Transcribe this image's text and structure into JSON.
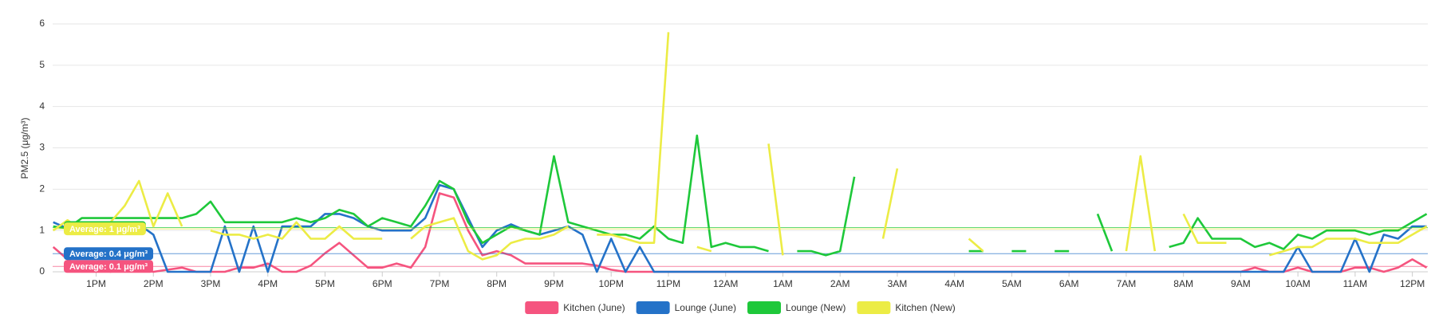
{
  "chart_data": {
    "type": "line",
    "ylabel": "PM2.5 (μg/m³)",
    "x": [
      12.25,
      12.5,
      12.75,
      13,
      13.25,
      13.5,
      13.75,
      14,
      14.25,
      14.5,
      14.75,
      15,
      15.25,
      15.5,
      15.75,
      16,
      16.25,
      16.5,
      16.75,
      17,
      17.25,
      17.5,
      17.75,
      18,
      18.25,
      18.5,
      18.75,
      19,
      19.25,
      19.5,
      19.75,
      20,
      20.25,
      20.5,
      20.75,
      21,
      21.25,
      21.5,
      21.75,
      22,
      22.25,
      22.5,
      22.75,
      23,
      23.25,
      23.5,
      23.75,
      24,
      24.25,
      24.5,
      24.75,
      25,
      25.25,
      25.5,
      25.75,
      26,
      26.25,
      26.5,
      26.75,
      27,
      27.25,
      27.5,
      27.75,
      28,
      28.25,
      28.5,
      28.75,
      29,
      29.25,
      29.5,
      29.75,
      30,
      30.25,
      30.5,
      30.75,
      31,
      31.25,
      31.5,
      31.75,
      32,
      32.25,
      32.5,
      32.75,
      33,
      33.25,
      33.5,
      33.75,
      34,
      34.25,
      34.5,
      34.75,
      35,
      35.25,
      35.5,
      35.75,
      36,
      36.25
    ],
    "xlim": [
      12.24,
      36.27
    ],
    "xticks": [
      {
        "value": 13,
        "label": "1PM"
      },
      {
        "value": 14,
        "label": "2PM"
      },
      {
        "value": 15,
        "label": "3PM"
      },
      {
        "value": 16,
        "label": "4PM"
      },
      {
        "value": 17,
        "label": "5PM"
      },
      {
        "value": 18,
        "label": "6PM"
      },
      {
        "value": 19,
        "label": "7PM"
      },
      {
        "value": 20,
        "label": "8PM"
      },
      {
        "value": 21,
        "label": "9PM"
      },
      {
        "value": 22,
        "label": "10PM"
      },
      {
        "value": 23,
        "label": "11PM"
      },
      {
        "value": 24,
        "label": "12AM"
      },
      {
        "value": 25,
        "label": "1AM"
      },
      {
        "value": 26,
        "label": "2AM"
      },
      {
        "value": 27,
        "label": "3AM"
      },
      {
        "value": 28,
        "label": "4AM"
      },
      {
        "value": 29,
        "label": "5AM"
      },
      {
        "value": 30,
        "label": "6AM"
      },
      {
        "value": 31,
        "label": "7AM"
      },
      {
        "value": 32,
        "label": "8AM"
      },
      {
        "value": 33,
        "label": "9AM"
      },
      {
        "value": 34,
        "label": "10AM"
      },
      {
        "value": 35,
        "label": "11AM"
      },
      {
        "value": 36,
        "label": "12PM"
      }
    ],
    "ylim": [
      0,
      6
    ],
    "yticks": [
      0,
      1,
      2,
      3,
      4,
      5,
      6
    ],
    "grid": true,
    "legend": "bottom",
    "series": [
      {
        "name": "Kitchen (June)",
        "color": "#f5547f",
        "average": 0.13,
        "average_label": "Average: 0.1 μg/m³",
        "values": [
          0.6,
          0.3,
          0.1,
          0.1,
          0,
          0.1,
          0.05,
          0,
          0.05,
          0.1,
          0,
          0,
          0,
          0.1,
          0.1,
          0.2,
          0,
          0,
          0.15,
          0.45,
          0.7,
          0.4,
          0.1,
          0.1,
          0.2,
          0.1,
          0.6,
          1.9,
          1.8,
          1.0,
          0.4,
          0.5,
          0.4,
          0.2,
          0.2,
          0.2,
          0.2,
          0.2,
          0.15,
          0.05,
          0,
          0,
          0,
          0,
          0,
          0,
          0,
          0,
          0,
          0,
          0,
          0,
          0,
          0,
          0,
          0,
          0,
          0,
          0,
          0,
          0,
          0,
          0,
          0,
          0,
          0,
          0,
          0,
          0,
          0,
          0,
          0,
          0,
          0,
          0,
          0,
          0,
          0,
          0,
          0,
          0,
          0,
          0,
          0,
          0.1,
          0,
          0,
          0.1,
          0,
          0,
          0,
          0.1,
          0.1,
          0,
          0.1,
          0.3,
          0.1
        ]
      },
      {
        "name": "Lounge (June)",
        "color": "#2472c8",
        "average": 0.44,
        "average_label": "Average: 0.4 μg/m³",
        "values": [
          1.2,
          1.05,
          1.1,
          1.1,
          1.1,
          1.1,
          1.15,
          0.9,
          0,
          0,
          0,
          0,
          1.1,
          0,
          1.1,
          0,
          1.1,
          1.1,
          1.1,
          1.4,
          1.4,
          1.3,
          1.1,
          1.0,
          1.0,
          1.0,
          1.3,
          2.1,
          2.0,
          1.3,
          0.6,
          1.0,
          1.15,
          1.0,
          0.9,
          1.0,
          1.1,
          0.9,
          0,
          0.8,
          0,
          0.6,
          0,
          0,
          0,
          0,
          0,
          0,
          0,
          0,
          0,
          0,
          0,
          0,
          0,
          0,
          0,
          0,
          0,
          0,
          0,
          0,
          0,
          0,
          0,
          0,
          0,
          0,
          0,
          0,
          0,
          0,
          0,
          0,
          0,
          0,
          0,
          0,
          0,
          0,
          0,
          0,
          0,
          0,
          0,
          0,
          0,
          0.6,
          0,
          0,
          0,
          0.8,
          0,
          0.9,
          0.8,
          1.1,
          1.1
        ]
      },
      {
        "name": "Lounge (New)",
        "color": "#1ec83a",
        "average": 1.07,
        "average_label": "Average: 1 μg/m³",
        "values": [
          1.1,
          1.05,
          1.3,
          1.3,
          1.3,
          1.3,
          1.3,
          1.3,
          1.3,
          1.3,
          1.4,
          1.7,
          1.2,
          1.2,
          1.2,
          1.2,
          1.2,
          1.3,
          1.2,
          1.3,
          1.5,
          1.4,
          1.1,
          1.3,
          1.2,
          1.1,
          1.6,
          2.2,
          2.0,
          1.2,
          0.7,
          0.9,
          1.1,
          1.0,
          0.9,
          2.8,
          1.2,
          1.1,
          1.0,
          0.9,
          0.9,
          0.8,
          1.1,
          0.8,
          0.7,
          3.3,
          0.6,
          0.7,
          0.6,
          0.6,
          0.5,
          null,
          0.5,
          0.5,
          0.4,
          0.5,
          2.3,
          null,
          null,
          null,
          null,
          null,
          null,
          null,
          0.5,
          0.5,
          null,
          0.5,
          0.5,
          null,
          0.5,
          0.5,
          null,
          1.4,
          0.5,
          null,
          null,
          null,
          0.6,
          0.7,
          1.3,
          0.8,
          0.8,
          0.8,
          0.6,
          0.7,
          0.55,
          0.9,
          0.8,
          1.0,
          1.0,
          1.0,
          0.9,
          1.0,
          1.0,
          1.2,
          1.4
        ]
      },
      {
        "name": "Kitchen (New)",
        "color": "#ecec45",
        "average": 1.04,
        "average_label": "Average: 1 μg/m³",
        "values": [
          1.0,
          1.25,
          1.0,
          1.0,
          1.2,
          1.6,
          2.2,
          1.1,
          1.9,
          1.1,
          null,
          1.0,
          0.9,
          0.9,
          0.8,
          0.9,
          0.8,
          1.2,
          0.8,
          0.8,
          1.1,
          0.8,
          0.8,
          0.8,
          null,
          0.8,
          1.1,
          1.2,
          1.3,
          0.5,
          0.3,
          0.4,
          0.7,
          0.8,
          0.8,
          0.9,
          1.1,
          null,
          0.9,
          0.9,
          0.8,
          0.7,
          0.7,
          5.8,
          null,
          0.6,
          0.5,
          null,
          null,
          null,
          3.1,
          0.4,
          null,
          null,
          null,
          null,
          null,
          null,
          0.8,
          2.5,
          null,
          null,
          null,
          null,
          0.8,
          0.5,
          null,
          null,
          null,
          null,
          null,
          null,
          null,
          null,
          null,
          0.5,
          2.8,
          0.5,
          null,
          1.4,
          0.7,
          0.7,
          0.7,
          null,
          null,
          0.4,
          0.5,
          0.6,
          0.6,
          0.8,
          0.8,
          0.8,
          0.7,
          0.7,
          0.7,
          0.9,
          1.1
        ]
      }
    ]
  }
}
